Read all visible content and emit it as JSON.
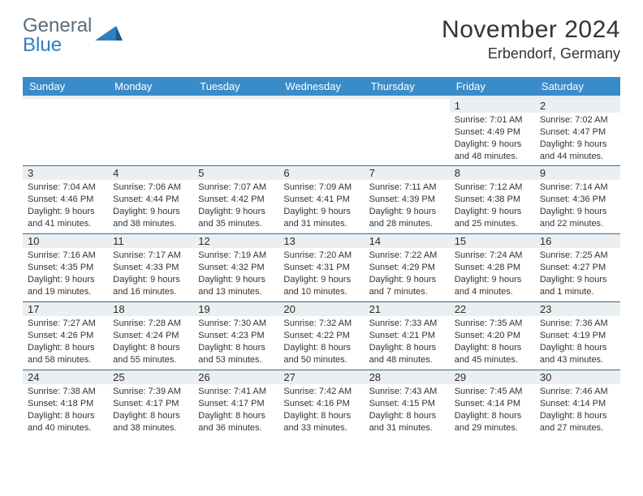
{
  "brand": {
    "word1": "General",
    "word2": "Blue"
  },
  "title": {
    "month_year": "November 2024",
    "location": "Erbendorf, Germany"
  },
  "colors": {
    "header_bg": "#3a8cc9",
    "header_fg": "#ffffff",
    "daynum_bg": "#eceff1",
    "row_divider": "#3a6a8e",
    "page_bg": "#ffffff",
    "text": "#333333",
    "logo_gray": "#5b6b78",
    "logo_blue": "#2d7fc1"
  },
  "weekdays": [
    "Sunday",
    "Monday",
    "Tuesday",
    "Wednesday",
    "Thursday",
    "Friday",
    "Saturday"
  ],
  "weeks": [
    [
      null,
      null,
      null,
      null,
      null,
      {
        "n": "1",
        "sunrise": "7:01 AM",
        "sunset": "4:49 PM",
        "day_h": 9,
        "day_m": 48
      },
      {
        "n": "2",
        "sunrise": "7:02 AM",
        "sunset": "4:47 PM",
        "day_h": 9,
        "day_m": 44
      }
    ],
    [
      {
        "n": "3",
        "sunrise": "7:04 AM",
        "sunset": "4:46 PM",
        "day_h": 9,
        "day_m": 41
      },
      {
        "n": "4",
        "sunrise": "7:06 AM",
        "sunset": "4:44 PM",
        "day_h": 9,
        "day_m": 38
      },
      {
        "n": "5",
        "sunrise": "7:07 AM",
        "sunset": "4:42 PM",
        "day_h": 9,
        "day_m": 35
      },
      {
        "n": "6",
        "sunrise": "7:09 AM",
        "sunset": "4:41 PM",
        "day_h": 9,
        "day_m": 31
      },
      {
        "n": "7",
        "sunrise": "7:11 AM",
        "sunset": "4:39 PM",
        "day_h": 9,
        "day_m": 28
      },
      {
        "n": "8",
        "sunrise": "7:12 AM",
        "sunset": "4:38 PM",
        "day_h": 9,
        "day_m": 25
      },
      {
        "n": "9",
        "sunrise": "7:14 AM",
        "sunset": "4:36 PM",
        "day_h": 9,
        "day_m": 22
      }
    ],
    [
      {
        "n": "10",
        "sunrise": "7:16 AM",
        "sunset": "4:35 PM",
        "day_h": 9,
        "day_m": 19
      },
      {
        "n": "11",
        "sunrise": "7:17 AM",
        "sunset": "4:33 PM",
        "day_h": 9,
        "day_m": 16
      },
      {
        "n": "12",
        "sunrise": "7:19 AM",
        "sunset": "4:32 PM",
        "day_h": 9,
        "day_m": 13
      },
      {
        "n": "13",
        "sunrise": "7:20 AM",
        "sunset": "4:31 PM",
        "day_h": 9,
        "day_m": 10
      },
      {
        "n": "14",
        "sunrise": "7:22 AM",
        "sunset": "4:29 PM",
        "day_h": 9,
        "day_m": 7
      },
      {
        "n": "15",
        "sunrise": "7:24 AM",
        "sunset": "4:28 PM",
        "day_h": 9,
        "day_m": 4
      },
      {
        "n": "16",
        "sunrise": "7:25 AM",
        "sunset": "4:27 PM",
        "day_h": 9,
        "day_m": 1
      }
    ],
    [
      {
        "n": "17",
        "sunrise": "7:27 AM",
        "sunset": "4:26 PM",
        "day_h": 8,
        "day_m": 58
      },
      {
        "n": "18",
        "sunrise": "7:28 AM",
        "sunset": "4:24 PM",
        "day_h": 8,
        "day_m": 55
      },
      {
        "n": "19",
        "sunrise": "7:30 AM",
        "sunset": "4:23 PM",
        "day_h": 8,
        "day_m": 53
      },
      {
        "n": "20",
        "sunrise": "7:32 AM",
        "sunset": "4:22 PM",
        "day_h": 8,
        "day_m": 50
      },
      {
        "n": "21",
        "sunrise": "7:33 AM",
        "sunset": "4:21 PM",
        "day_h": 8,
        "day_m": 48
      },
      {
        "n": "22",
        "sunrise": "7:35 AM",
        "sunset": "4:20 PM",
        "day_h": 8,
        "day_m": 45
      },
      {
        "n": "23",
        "sunrise": "7:36 AM",
        "sunset": "4:19 PM",
        "day_h": 8,
        "day_m": 43
      }
    ],
    [
      {
        "n": "24",
        "sunrise": "7:38 AM",
        "sunset": "4:18 PM",
        "day_h": 8,
        "day_m": 40
      },
      {
        "n": "25",
        "sunrise": "7:39 AM",
        "sunset": "4:17 PM",
        "day_h": 8,
        "day_m": 38
      },
      {
        "n": "26",
        "sunrise": "7:41 AM",
        "sunset": "4:17 PM",
        "day_h": 8,
        "day_m": 36
      },
      {
        "n": "27",
        "sunrise": "7:42 AM",
        "sunset": "4:16 PM",
        "day_h": 8,
        "day_m": 33
      },
      {
        "n": "28",
        "sunrise": "7:43 AM",
        "sunset": "4:15 PM",
        "day_h": 8,
        "day_m": 31
      },
      {
        "n": "29",
        "sunrise": "7:45 AM",
        "sunset": "4:14 PM",
        "day_h": 8,
        "day_m": 29
      },
      {
        "n": "30",
        "sunrise": "7:46 AM",
        "sunset": "4:14 PM",
        "day_h": 8,
        "day_m": 27
      }
    ]
  ],
  "labels": {
    "sunrise": "Sunrise:",
    "sunset": "Sunset:",
    "daylight": "Daylight:",
    "hours_word": "hours",
    "and_word": "and",
    "minutes_word": "minutes.",
    "minute_word": "minute."
  }
}
